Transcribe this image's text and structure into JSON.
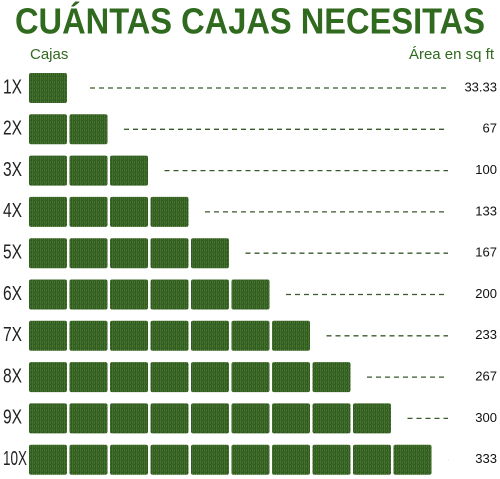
{
  "header": {
    "title": "CUÁNTAS CAJAS NECESITAS",
    "left_label": "Cajas",
    "right_label": "Área en sq ft"
  },
  "rows": [
    {
      "label": "1X",
      "area": "33.33"
    },
    {
      "label": "2X",
      "area": "67"
    },
    {
      "label": "3X",
      "area": "100"
    },
    {
      "label": "4X",
      "area": "133"
    },
    {
      "label": "5X",
      "area": "167"
    },
    {
      "label": "6X",
      "area": "200"
    },
    {
      "label": "7X",
      "area": "233"
    },
    {
      "label": "8X",
      "area": "267"
    },
    {
      "label": "9X",
      "area": "300"
    },
    {
      "label": "10X",
      "area": "333"
    }
  ]
}
